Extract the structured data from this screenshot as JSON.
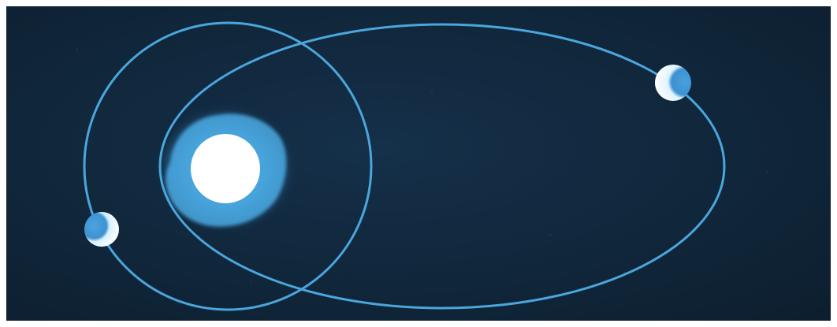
{
  "diagram": {
    "colors": {
      "background": "#102537",
      "orbit": "#4aa6dd",
      "sun_core": "#ffffff",
      "corona": "#4aa7df",
      "planet_lit": "#ffffff",
      "planet_shadow": "#3f97d6"
    },
    "objects": [
      {
        "name": "sun",
        "kind": "star"
      },
      {
        "name": "planet-left",
        "kind": "planet",
        "orbit": "circular-orbit"
      },
      {
        "name": "planet-right",
        "kind": "planet",
        "orbit": "elliptical-orbit"
      }
    ],
    "orbits": [
      {
        "name": "circular-orbit",
        "shape": "circle"
      },
      {
        "name": "elliptical-orbit",
        "shape": "ellipse"
      }
    ]
  }
}
